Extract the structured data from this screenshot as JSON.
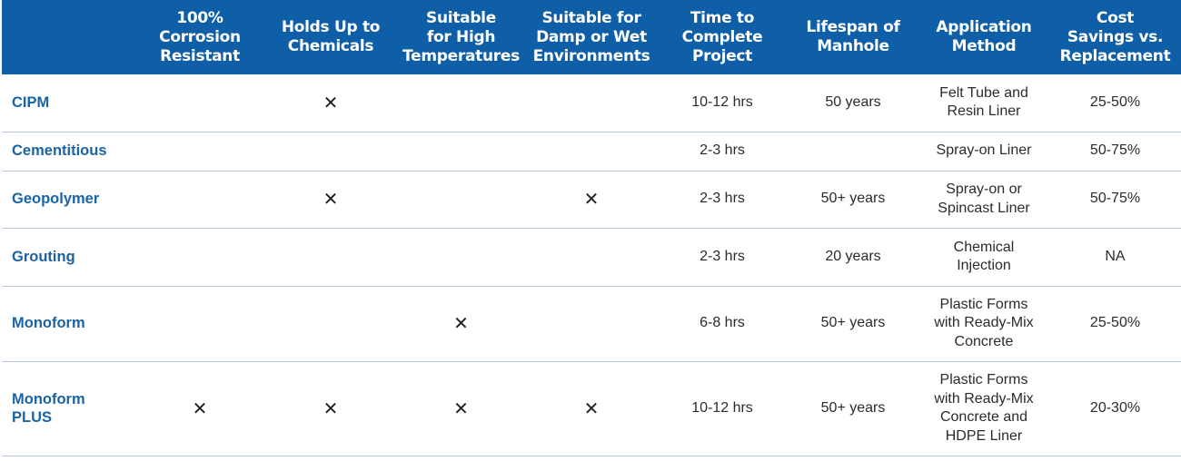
{
  "headers": [
    "",
    "100%\nCorrosion\nResistant",
    "Holds Up to\nChemicals",
    "Suitable\nfor High\nTemperatures",
    "Suitable for\nDamp or Wet\nEnvironments",
    "Time to\nComplete\nProject",
    "Lifespan of\nManhole",
    "Application\nMethod",
    "Cost\nSavings vs.\nReplacement"
  ],
  "check_symbol": "✕",
  "rows": [
    {
      "name": "CIPM",
      "corrosion": "",
      "chemicals": "✕",
      "high_temp": "",
      "damp_wet": "",
      "time": "10-12 hrs",
      "lifespan": "50 years",
      "method": "Felt Tube and\nResin Liner",
      "savings": "25-50%"
    },
    {
      "name": "Cementitious",
      "corrosion": "",
      "chemicals": "",
      "high_temp": "",
      "damp_wet": "",
      "time": "2-3 hrs",
      "lifespan": "",
      "method": "Spray-on Liner",
      "savings": "50-75%"
    },
    {
      "name": "Geopolymer",
      "corrosion": "",
      "chemicals": "✕",
      "high_temp": "",
      "damp_wet": "✕",
      "time": "2-3 hrs",
      "lifespan": "50+ years",
      "method": "Spray-on or\nSpincast Liner",
      "savings": "50-75%"
    },
    {
      "name": "Grouting",
      "corrosion": "",
      "chemicals": "",
      "high_temp": "",
      "damp_wet": "",
      "time": "2-3 hrs",
      "lifespan": "20 years",
      "method": "Chemical\nInjection",
      "savings": "NA"
    },
    {
      "name": "Monoform",
      "corrosion": "",
      "chemicals": "",
      "high_temp": "✕",
      "damp_wet": "",
      "time": "6-8 hrs",
      "lifespan": "50+ years",
      "method": "Plastic Forms\nwith Ready-Mix\nConcrete",
      "savings": "25-50%"
    },
    {
      "name": "Monoform\nPLUS",
      "corrosion": "✕",
      "chemicals": "✕",
      "high_temp": "✕",
      "damp_wet": "✕",
      "time": "10-12 hrs",
      "lifespan": "50+ years",
      "method": "Plastic Forms\nwith Ready-Mix\nConcrete and\nHDPE Liner",
      "savings": "20-30%"
    }
  ],
  "colors": {
    "header_bg": "#0f5fa8",
    "header_text": "#ffffff",
    "row_name": "#1a63a5",
    "divider": "#b9c9dc"
  }
}
